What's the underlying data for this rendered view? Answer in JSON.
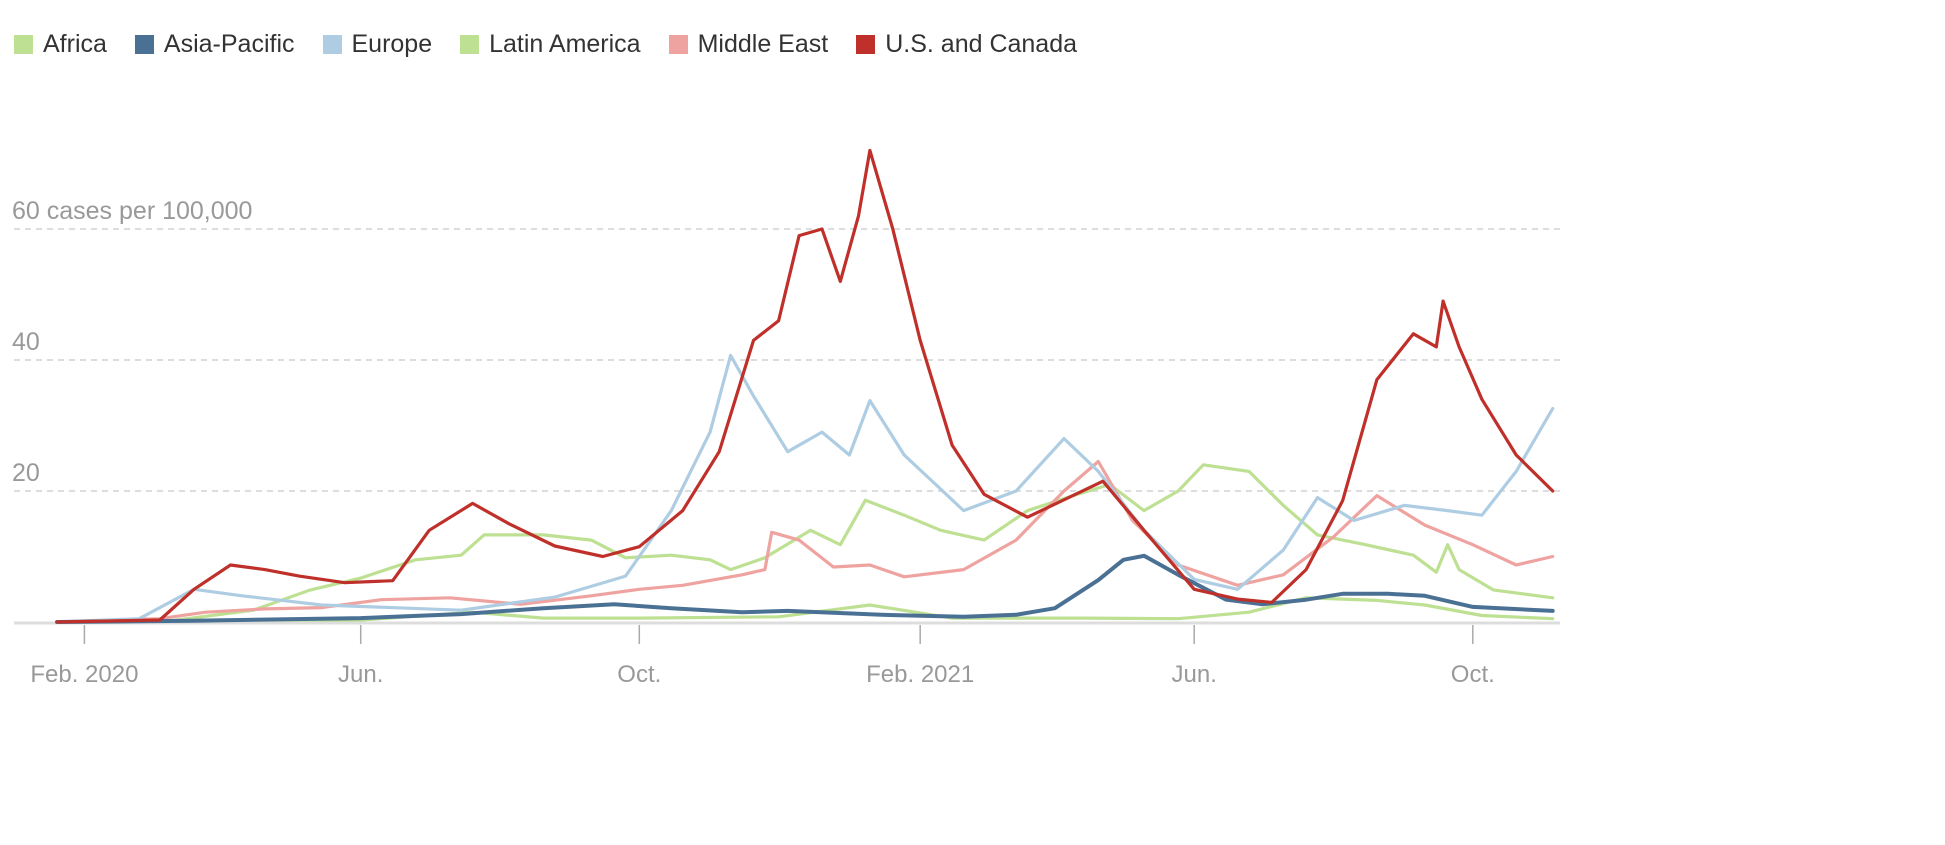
{
  "chart_data": {
    "type": "line",
    "ylabel_unit": "cases per 100,000",
    "y_ticks": [
      {
        "value": 20,
        "label": "20"
      },
      {
        "value": 40,
        "label": "40"
      },
      {
        "value": 60,
        "label": "60 cases per 100,000"
      }
    ],
    "ylim": [
      0,
      75
    ],
    "xlim": [
      "2020-01-20",
      "2021-11-06"
    ],
    "x_ticks": [
      {
        "date": "2020-02-01",
        "label": "Feb. 2020"
      },
      {
        "date": "2020-06-01",
        "label": "Jun."
      },
      {
        "date": "2020-10-01",
        "label": "Oct."
      },
      {
        "date": "2021-02-01",
        "label": "Feb. 2021"
      },
      {
        "date": "2021-06-01",
        "label": "Jun."
      },
      {
        "date": "2021-10-01",
        "label": "Oct."
      }
    ],
    "grid": "horizontal dashed",
    "legend_position": "top-left",
    "series": [
      {
        "name": "Africa",
        "color": "#bde092",
        "points": [
          [
            "2020-01-20",
            0
          ],
          [
            "2020-04-01",
            0.3
          ],
          [
            "2020-06-01",
            0.3
          ],
          [
            "2020-07-20",
            1.5
          ],
          [
            "2020-08-20",
            0.6
          ],
          [
            "2020-10-01",
            0.6
          ],
          [
            "2020-12-01",
            0.8
          ],
          [
            "2021-01-10",
            2.6
          ],
          [
            "2021-02-15",
            0.6
          ],
          [
            "2021-04-15",
            0.6
          ],
          [
            "2021-05-25",
            0.5
          ],
          [
            "2021-06-25",
            1.5
          ],
          [
            "2021-07-20",
            3.7
          ],
          [
            "2021-08-20",
            3.3
          ],
          [
            "2021-09-10",
            2.6
          ],
          [
            "2021-10-05",
            1
          ],
          [
            "2021-11-05",
            0.5
          ]
        ]
      },
      {
        "name": "Asia-Pacific",
        "color": "#4a7194",
        "points": [
          [
            "2020-01-20",
            0
          ],
          [
            "2020-03-20",
            0.2
          ],
          [
            "2020-06-01",
            0.6
          ],
          [
            "2020-07-15",
            1.2
          ],
          [
            "2020-08-20",
            2.1
          ],
          [
            "2020-09-20",
            2.7
          ],
          [
            "2020-10-15",
            2.1
          ],
          [
            "2020-11-15",
            1.5
          ],
          [
            "2020-12-05",
            1.7
          ],
          [
            "2021-01-15",
            1.1
          ],
          [
            "2021-02-20",
            0.8
          ],
          [
            "2021-03-15",
            1.1
          ],
          [
            "2021-04-01",
            2.1
          ],
          [
            "2021-04-20",
            6.4
          ],
          [
            "2021-05-01",
            9.5
          ],
          [
            "2021-05-10",
            10.1
          ],
          [
            "2021-05-25",
            7.2
          ],
          [
            "2021-06-15",
            3.4
          ],
          [
            "2021-07-01",
            2.7
          ],
          [
            "2021-07-20",
            3.4
          ],
          [
            "2021-08-05",
            4.3
          ],
          [
            "2021-08-25",
            4.3
          ],
          [
            "2021-09-10",
            4
          ],
          [
            "2021-10-01",
            2.3
          ],
          [
            "2021-11-05",
            1.7
          ]
        ]
      },
      {
        "name": "Europe",
        "color": "#aecde3",
        "points": [
          [
            "2020-01-20",
            0
          ],
          [
            "2020-02-25",
            0.5
          ],
          [
            "2020-03-20",
            5
          ],
          [
            "2020-04-10",
            4
          ],
          [
            "2020-05-15",
            2.6
          ],
          [
            "2020-07-15",
            1.8
          ],
          [
            "2020-08-25",
            3.8
          ],
          [
            "2020-09-25",
            7
          ],
          [
            "2020-10-15",
            17
          ],
          [
            "2020-11-01",
            29
          ],
          [
            "2020-11-10",
            40.7
          ],
          [
            "2020-11-20",
            34.5
          ],
          [
            "2020-12-05",
            26
          ],
          [
            "2020-12-20",
            29
          ],
          [
            "2021-01-01",
            25.5
          ],
          [
            "2021-01-10",
            33.8
          ],
          [
            "2021-01-25",
            25.5
          ],
          [
            "2021-02-20",
            17
          ],
          [
            "2021-03-15",
            20
          ],
          [
            "2021-04-05",
            28
          ],
          [
            "2021-04-20",
            23
          ],
          [
            "2021-05-10",
            14
          ],
          [
            "2021-06-01",
            6.5
          ],
          [
            "2021-06-20",
            5
          ],
          [
            "2021-07-10",
            11
          ],
          [
            "2021-07-25",
            19
          ],
          [
            "2021-08-10",
            15.5
          ],
          [
            "2021-09-01",
            17.8
          ],
          [
            "2021-09-20",
            17
          ],
          [
            "2021-10-05",
            16.3
          ],
          [
            "2021-10-20",
            23
          ],
          [
            "2021-11-05",
            32.6
          ]
        ]
      },
      {
        "name": "Latin America",
        "color": "#bde092",
        "points": [
          [
            "2020-01-20",
            0
          ],
          [
            "2020-03-10",
            0.2
          ],
          [
            "2020-04-15",
            1.8
          ],
          [
            "2020-05-10",
            4.9
          ],
          [
            "2020-06-01",
            6.7
          ],
          [
            "2020-06-25",
            9.5
          ],
          [
            "2020-07-15",
            10.2
          ],
          [
            "2020-07-25",
            13.3
          ],
          [
            "2020-08-20",
            13.3
          ],
          [
            "2020-09-10",
            12.5
          ],
          [
            "2020-09-25",
            9.8
          ],
          [
            "2020-10-15",
            10.2
          ],
          [
            "2020-11-01",
            9.5
          ],
          [
            "2020-11-10",
            8
          ],
          [
            "2020-11-25",
            9.8
          ],
          [
            "2020-12-15",
            14
          ],
          [
            "2020-12-28",
            11.8
          ],
          [
            "2021-01-08",
            18.6
          ],
          [
            "2021-01-25",
            16.3
          ],
          [
            "2021-02-10",
            14
          ],
          [
            "2021-03-01",
            12.5
          ],
          [
            "2021-03-20",
            17
          ],
          [
            "2021-04-10",
            19.4
          ],
          [
            "2021-04-25",
            21
          ],
          [
            "2021-05-10",
            17
          ],
          [
            "2021-05-25",
            20
          ],
          [
            "2021-06-05",
            24
          ],
          [
            "2021-06-25",
            23
          ],
          [
            "2021-07-10",
            17.8
          ],
          [
            "2021-07-25",
            13.3
          ],
          [
            "2021-08-15",
            11.8
          ],
          [
            "2021-09-05",
            10.2
          ],
          [
            "2021-09-15",
            7.6
          ],
          [
            "2021-09-20",
            11.8
          ],
          [
            "2021-09-25",
            8
          ],
          [
            "2021-10-10",
            4.9
          ],
          [
            "2021-11-05",
            3.7
          ]
        ]
      },
      {
        "name": "Middle East",
        "color": "#efa3a0",
        "points": [
          [
            "2020-01-20",
            0
          ],
          [
            "2020-03-05",
            0.5
          ],
          [
            "2020-03-25",
            1.5
          ],
          [
            "2020-04-20",
            2
          ],
          [
            "2020-05-15",
            2.2
          ],
          [
            "2020-06-10",
            3.4
          ],
          [
            "2020-07-10",
            3.7
          ],
          [
            "2020-08-10",
            2.7
          ],
          [
            "2020-09-10",
            4
          ],
          [
            "2020-10-01",
            5
          ],
          [
            "2020-10-20",
            5.6
          ],
          [
            "2020-11-15",
            7.2
          ],
          [
            "2020-11-25",
            8
          ],
          [
            "2020-11-28",
            13.7
          ],
          [
            "2020-12-10",
            12.5
          ],
          [
            "2020-12-25",
            8.4
          ],
          [
            "2021-01-10",
            8.7
          ],
          [
            "2021-01-25",
            6.9
          ],
          [
            "2021-02-20",
            8
          ],
          [
            "2021-03-15",
            12.5
          ],
          [
            "2021-04-05",
            20
          ],
          [
            "2021-04-20",
            24.5
          ],
          [
            "2021-05-05",
            15.5
          ],
          [
            "2021-05-25",
            8.7
          ],
          [
            "2021-06-20",
            5.6
          ],
          [
            "2021-07-10",
            7.2
          ],
          [
            "2021-08-01",
            13
          ],
          [
            "2021-08-20",
            19.3
          ],
          [
            "2021-09-10",
            14.8
          ],
          [
            "2021-10-01",
            11.8
          ],
          [
            "2021-10-20",
            8.7
          ],
          [
            "2021-11-05",
            10
          ]
        ]
      },
      {
        "name": "U.S. and Canada",
        "color": "#c0302a",
        "points": [
          [
            "2020-01-20",
            0
          ],
          [
            "2020-03-05",
            0.3
          ],
          [
            "2020-03-20",
            5
          ],
          [
            "2020-04-05",
            8.7
          ],
          [
            "2020-04-20",
            8
          ],
          [
            "2020-05-05",
            7
          ],
          [
            "2020-05-25",
            6
          ],
          [
            "2020-06-15",
            6.3
          ],
          [
            "2020-07-01",
            14
          ],
          [
            "2020-07-20",
            18.1
          ],
          [
            "2020-08-05",
            15
          ],
          [
            "2020-08-25",
            11.6
          ],
          [
            "2020-09-15",
            10
          ],
          [
            "2020-10-01",
            11.5
          ],
          [
            "2020-10-20",
            17
          ],
          [
            "2020-11-05",
            26
          ],
          [
            "2020-11-20",
            43
          ],
          [
            "2020-12-01",
            46
          ],
          [
            "2020-12-10",
            59
          ],
          [
            "2020-12-20",
            60
          ],
          [
            "2020-12-28",
            52
          ],
          [
            "2021-01-05",
            62
          ],
          [
            "2021-01-10",
            72
          ],
          [
            "2021-01-20",
            60
          ],
          [
            "2021-02-01",
            43
          ],
          [
            "2021-02-15",
            27
          ],
          [
            "2021-03-01",
            19.5
          ],
          [
            "2021-03-20",
            16
          ],
          [
            "2021-04-10",
            19.5
          ],
          [
            "2021-04-22",
            21.5
          ],
          [
            "2021-05-10",
            14
          ],
          [
            "2021-06-01",
            5
          ],
          [
            "2021-06-20",
            3.5
          ],
          [
            "2021-07-05",
            3
          ],
          [
            "2021-07-20",
            8
          ],
          [
            "2021-08-05",
            18.5
          ],
          [
            "2021-08-20",
            37
          ],
          [
            "2021-09-05",
            44
          ],
          [
            "2021-09-15",
            42
          ],
          [
            "2021-09-18",
            49
          ],
          [
            "2021-09-25",
            42
          ],
          [
            "2021-10-05",
            34
          ],
          [
            "2021-10-20",
            25.5
          ],
          [
            "2021-11-05",
            20
          ]
        ]
      }
    ]
  }
}
